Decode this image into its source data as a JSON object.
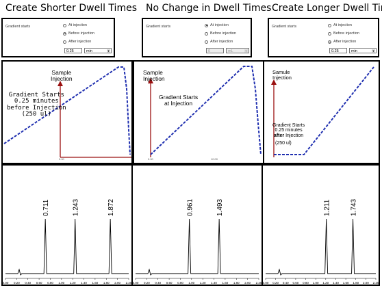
{
  "titles": {
    "left": "Create Shorter Dwell Times",
    "middle": "No Change in Dwell Times",
    "right": "Create Longer Dwell Times"
  },
  "options": {
    "gradient_label": "Gradient starts",
    "at_injection": "At injection",
    "before_injection": "Before injection",
    "after_injection": "After injection",
    "left_value": "0.25",
    "middle_value": "0",
    "right_value": "0.25",
    "unit": "min",
    "middle_unit": "mL"
  },
  "gradient": {
    "left": {
      "sample_injection": "Sample\nInjection",
      "annotation": "Gradient Starts\n0.25 minutes\nbefore Injection\n(250 ul)",
      "axis_start": "0.00"
    },
    "middle": {
      "sample_injection": "Sample\nInjection",
      "annotation": "Gradient Starts\nat Injection",
      "axis_start": "0.00",
      "axis_mid": "10.00"
    },
    "right": {
      "sample_injection": "Samule\nInjection",
      "annotation_line1": "Gradient Starts",
      "annotation_line2": "0.25 minutes",
      "annotation_after": "after",
      "annotation_line3": "Injection",
      "annotation_line4": "(250 ul)"
    }
  },
  "chromatograms": {
    "left": {
      "peaks": [
        "0.711",
        "1.243",
        "1.872"
      ],
      "ticks": [
        "0.00",
        "0.20",
        "0.40",
        "0.60",
        "0.80",
        "1.00",
        "1.20",
        "1.40",
        "1.60",
        "1.80",
        "2.00",
        "2.20"
      ]
    },
    "middle": {
      "peaks": [
        "0.961",
        "1.493"
      ],
      "ticks": [
        "0.00",
        "0.20",
        "0.40",
        "0.60",
        "0.80",
        "1.00",
        "1.20",
        "1.40",
        "1.60",
        "1.80",
        "2.00",
        "2.20"
      ]
    },
    "right": {
      "peaks": [
        "1.211",
        "1.743"
      ],
      "ticks": [
        "0.00",
        "0.20",
        "0.40",
        "0.60",
        "0.80",
        "1.00",
        "1.20",
        "1.40",
        "1.60",
        "1.80",
        "2.00",
        "2.20"
      ]
    }
  },
  "colors": {
    "gradient_line": "#1f2fb0",
    "injection_marker": "#9a1010",
    "trace": "#000000"
  }
}
